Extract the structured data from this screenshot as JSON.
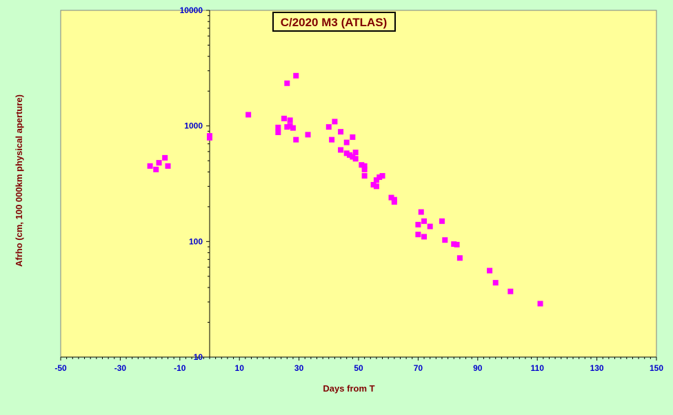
{
  "chart_data": {
    "type": "scatter",
    "title": "C/2020 M3 (ATLAS)",
    "xlabel": "Days from  T",
    "ylabel": "Afrho (cm, 100 000km physical aperture)",
    "xlim": [
      -50,
      150
    ],
    "ylim": [
      10,
      10000
    ],
    "y_scale": "log",
    "x_ticks": [
      -50,
      -30,
      -10,
      10,
      30,
      50,
      70,
      90,
      110,
      130,
      150
    ],
    "x_tick_labels": [
      "-50",
      "-30",
      "-10",
      "10",
      "30",
      "50",
      "70",
      "90",
      "110",
      "130",
      "150"
    ],
    "y_ticks": [
      10,
      100,
      1000,
      10000
    ],
    "y_tick_labels": [
      "10",
      "100",
      "1000",
      "10000"
    ],
    "grid": false,
    "colors": {
      "outer_background": "#ccffcc",
      "plot_background": "#ffff99",
      "marker": "#ff00ff",
      "tick_labels": "#0000cc",
      "axis_titles": "#800000"
    },
    "series": [
      {
        "marker": "square",
        "points": [
          [
            -20,
            450
          ],
          [
            -18,
            420
          ],
          [
            -17,
            480
          ],
          [
            -15,
            530
          ],
          [
            -14,
            450
          ],
          [
            0,
            820
          ],
          [
            0,
            790
          ],
          [
            13,
            1250
          ],
          [
            23,
            970
          ],
          [
            23,
            880
          ],
          [
            25,
            1160
          ],
          [
            26,
            980
          ],
          [
            26,
            2340
          ],
          [
            27,
            1000
          ],
          [
            27,
            1120
          ],
          [
            28,
            960
          ],
          [
            29,
            760
          ],
          [
            29,
            2720
          ],
          [
            33,
            840
          ],
          [
            40,
            980
          ],
          [
            41,
            760
          ],
          [
            42,
            1090
          ],
          [
            44,
            890
          ],
          [
            44,
            620
          ],
          [
            46,
            720
          ],
          [
            46,
            580
          ],
          [
            47,
            560
          ],
          [
            48,
            800
          ],
          [
            48,
            540
          ],
          [
            49,
            590
          ],
          [
            49,
            520
          ],
          [
            51,
            460
          ],
          [
            52,
            450
          ],
          [
            52,
            420
          ],
          [
            52,
            370
          ],
          [
            55,
            310
          ],
          [
            56,
            300
          ],
          [
            56,
            340
          ],
          [
            57,
            360
          ],
          [
            58,
            370
          ],
          [
            61,
            240
          ],
          [
            62,
            220
          ],
          [
            62,
            230
          ],
          [
            70,
            115
          ],
          [
            70,
            140
          ],
          [
            71,
            180
          ],
          [
            72,
            150
          ],
          [
            72,
            110
          ],
          [
            74,
            135
          ],
          [
            78,
            150
          ],
          [
            79,
            103
          ],
          [
            82,
            95
          ],
          [
            83,
            94
          ],
          [
            84,
            72
          ],
          [
            94,
            56
          ],
          [
            96,
            44
          ],
          [
            101,
            37
          ],
          [
            111,
            29
          ]
        ]
      }
    ]
  }
}
